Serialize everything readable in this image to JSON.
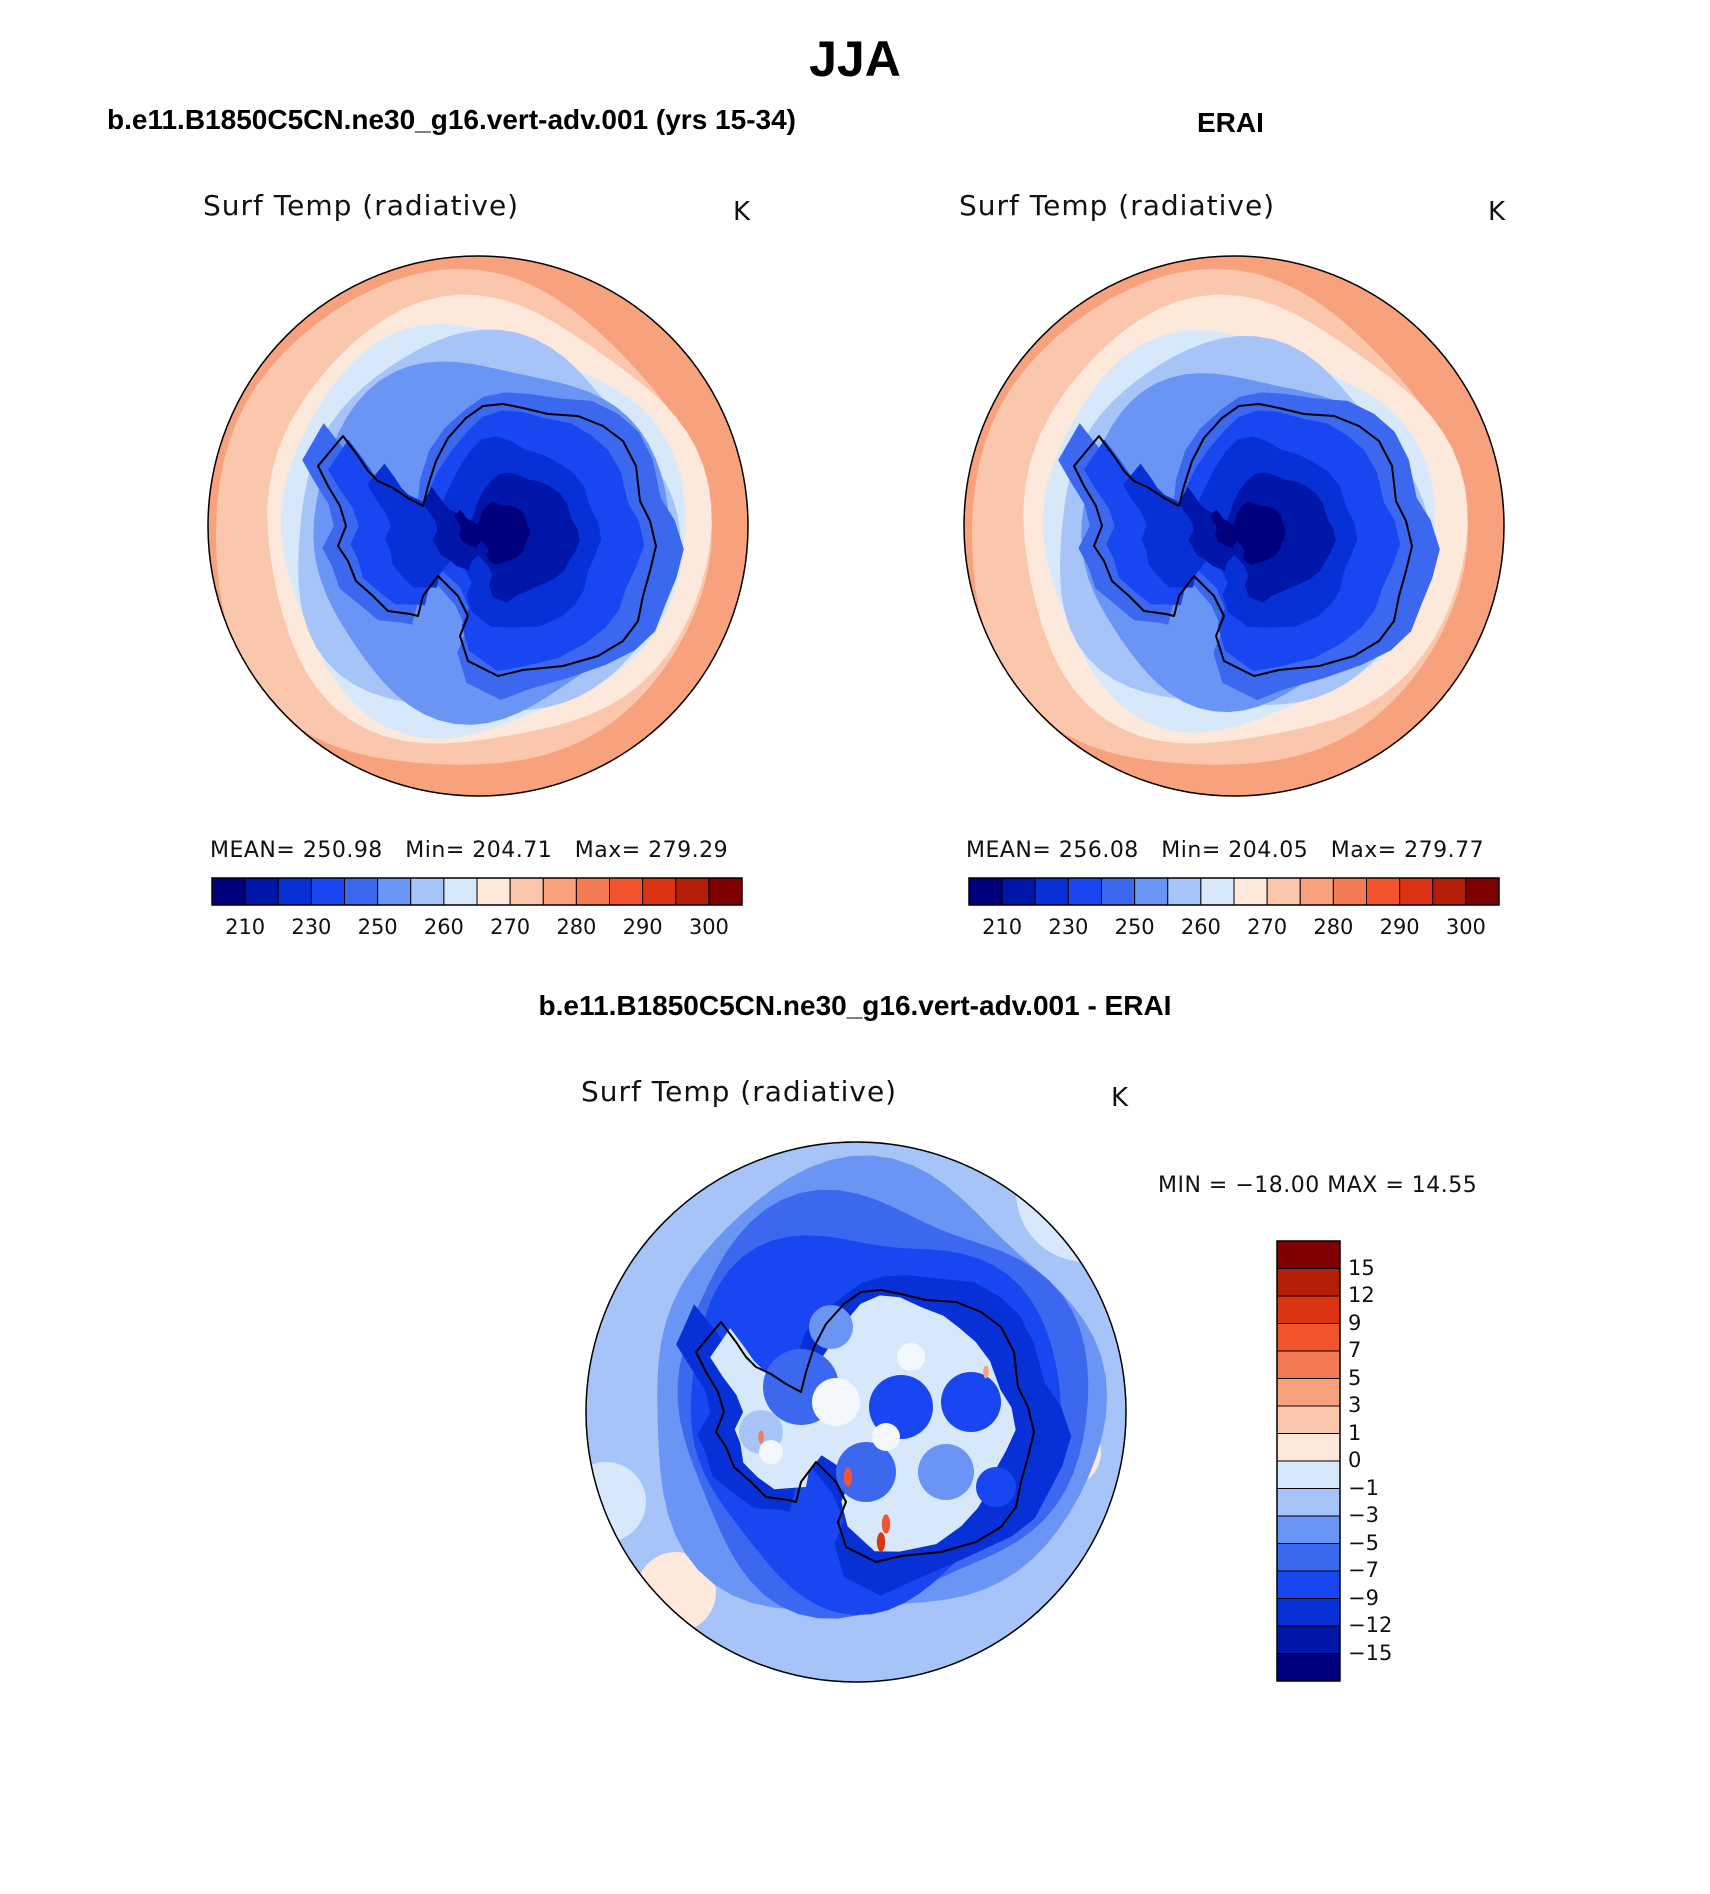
{
  "season_title": "JJA",
  "panels": {
    "model": {
      "case": "b.e11.B1850C5CN.ne30_g16.vert-adv.001 (yrs 15-34)",
      "variable": "Surf Temp (radiative)",
      "units": "K",
      "stats": {
        "mean_label": "MEAN=",
        "mean": "250.98",
        "min_label": "Min=",
        "min": "204.71",
        "max_label": "Max=",
        "max": "279.29"
      }
    },
    "obs": {
      "case": "ERAI",
      "variable": "Surf Temp (radiative)",
      "units": "K",
      "stats": {
        "mean_label": "MEAN=",
        "mean": "256.08",
        "min_label": "Min=",
        "min": "204.05",
        "max_label": "Max=",
        "max": "279.77"
      }
    },
    "diff": {
      "case": "b.e11.B1850C5CN.ne30_g16.vert-adv.001 - ERAI",
      "variable": "Surf Temp (radiative)",
      "units": "K",
      "minmax": "MIN = −18.00  MAX =   14.55"
    }
  },
  "colors": {
    "abs_scale": [
      "#00007f",
      "#0016a8",
      "#0731d6",
      "#1846f0",
      "#3c68f0",
      "#6b95f5",
      "#a6c4f8",
      "#d7e8fb",
      "#fde9dc",
      "#fbc7ac",
      "#f7a17d",
      "#f47a52",
      "#f2542e",
      "#dc3312",
      "#b31e07",
      "#7f0000"
    ],
    "diff_scale": [
      "#00007f",
      "#0016a8",
      "#0731d6",
      "#1846f0",
      "#3c68f0",
      "#6b95f5",
      "#a6c4f8",
      "#d7e8fb",
      "#fde9dc",
      "#fbc7ac",
      "#f7a17d",
      "#f47a52",
      "#f2542e",
      "#dc3312",
      "#b31e07",
      "#7f0000"
    ]
  },
  "chart_data": [
    {
      "type": "heatmap",
      "projection": "south polar stereographic",
      "title": "Surf Temp (radiative)",
      "units": "K",
      "colorbar_levels": [
        210,
        220,
        230,
        240,
        250,
        255,
        260,
        265,
        270,
        275,
        280,
        285,
        290,
        295,
        300
      ],
      "colorbar_tick_labels": [
        "210",
        "230",
        "250",
        "260",
        "270",
        "280",
        "290",
        "300"
      ],
      "mean": 250.98,
      "min": 204.71,
      "max": 279.29
    },
    {
      "type": "heatmap",
      "projection": "south polar stereographic",
      "title": "Surf Temp (radiative)",
      "units": "K",
      "colorbar_levels": [
        210,
        220,
        230,
        240,
        250,
        255,
        260,
        265,
        270,
        275,
        280,
        285,
        290,
        295,
        300
      ],
      "colorbar_tick_labels": [
        "210",
        "230",
        "250",
        "260",
        "270",
        "280",
        "290",
        "300"
      ],
      "mean": 256.08,
      "min": 204.05,
      "max": 279.77
    },
    {
      "type": "heatmap",
      "projection": "south polar stereographic",
      "title": "Surf Temp (radiative)",
      "units": "K",
      "colorbar_levels": [
        -15,
        -12,
        -9,
        -7,
        -5,
        -3,
        -1,
        0,
        1,
        3,
        5,
        7,
        9,
        12,
        15
      ],
      "colorbar_tick_labels": [
        "15",
        "12",
        "9",
        "7",
        "5",
        "3",
        "1",
        "0",
        "−1",
        "−3",
        "−5",
        "−7",
        "−9",
        "−12",
        "−15"
      ],
      "min": -18.0,
      "max": 14.55
    }
  ]
}
